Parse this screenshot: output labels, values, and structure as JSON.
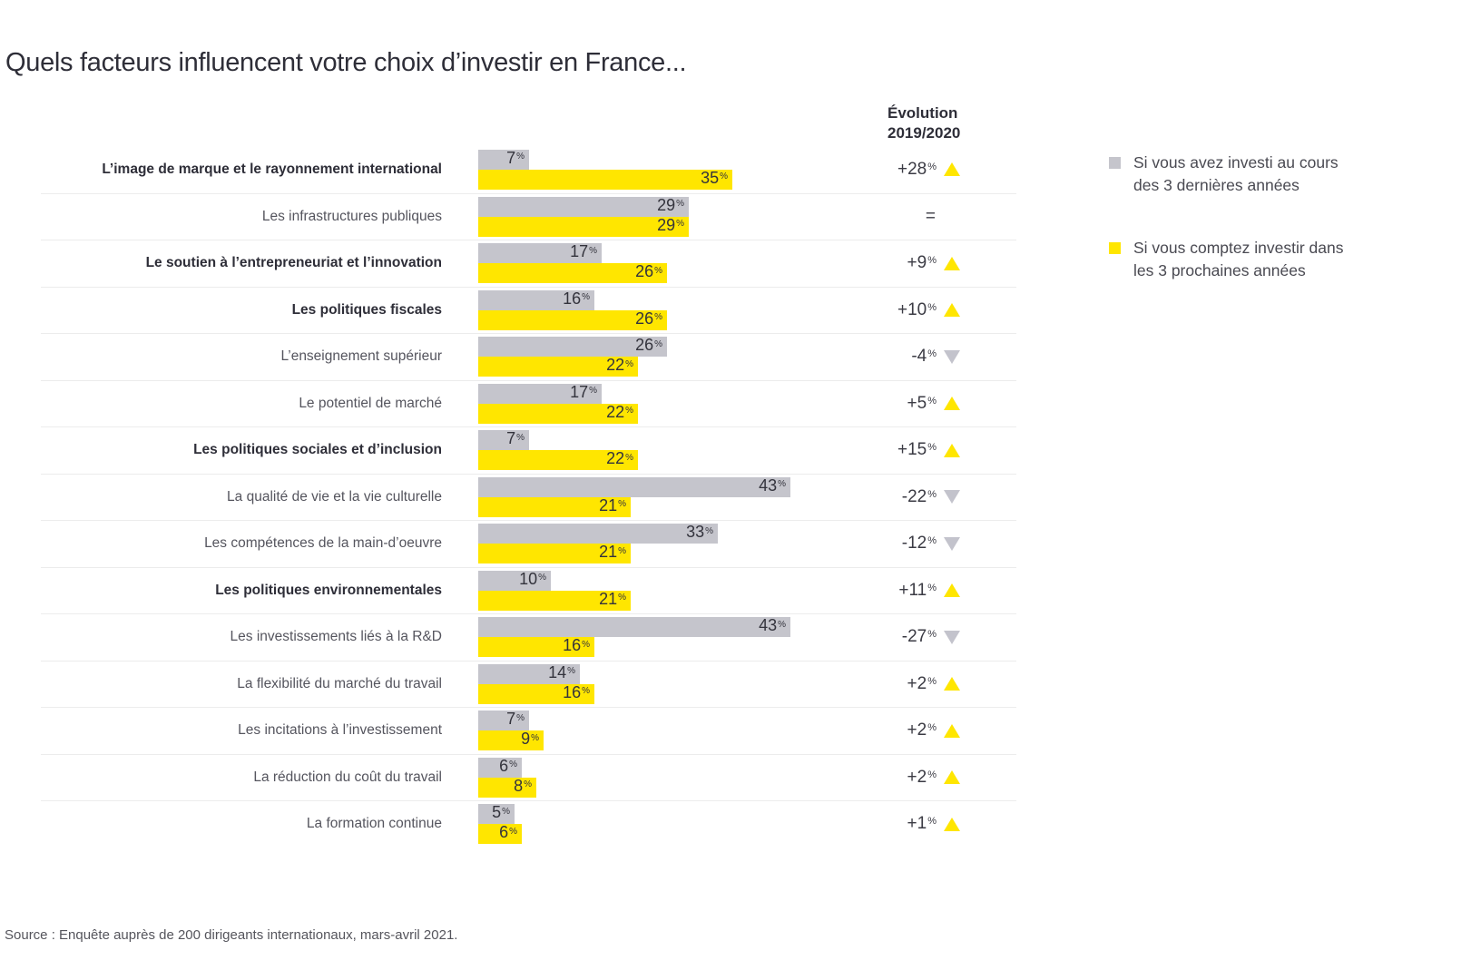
{
  "percent_sign": "%",
  "colors": {
    "bar_gray": "#c5c5cc",
    "bar_yellow": "#ffe600",
    "triangle_up": "#ffe600",
    "triangle_down": "#c3c3cc",
    "text_dark": "#2e2e38"
  },
  "evolution_header": {
    "line1": "Évolution",
    "line2": "2019/2020"
  },
  "legend": {
    "items": [
      {
        "color": "#c5c5cc",
        "line1": "Si vous avez investi au cours",
        "line2": "des 3 dernières années"
      },
      {
        "color": "#ffe600",
        "line1": "Si vous comptez investir dans",
        "line2": "les 3 prochaines années"
      }
    ]
  },
  "chart_data": {
    "type": "bar",
    "orientation": "horizontal",
    "unit": "%",
    "x_max": 50,
    "title": "Quels facteurs influencent votre choix d’investir en France...",
    "source": "Source : Enquête auprès de 200 dirigeants internationaux, mars-avril 2021.",
    "series_names": [
      "Si vous avez investi au cours des 3 dernières années",
      "Si vous comptez investir dans les 3 prochaines années"
    ],
    "evolution_column": "Évolution 2019/2020",
    "rows": [
      {
        "label": "L’image de marque et le rayonnement international",
        "bold": true,
        "invested_past": 7,
        "invest_future": 35,
        "evolution": "+28",
        "direction": "up"
      },
      {
        "label": "Les infrastructures publiques",
        "bold": false,
        "invested_past": 29,
        "invest_future": 29,
        "evolution": "=",
        "direction": "equal"
      },
      {
        "label": "Le soutien à l’entrepreneuriat et l’innovation",
        "bold": true,
        "invested_past": 17,
        "invest_future": 26,
        "evolution": "+9",
        "direction": "up"
      },
      {
        "label": "Les politiques fiscales",
        "bold": true,
        "invested_past": 16,
        "invest_future": 26,
        "evolution": "+10",
        "direction": "up"
      },
      {
        "label": "L’enseignement supérieur",
        "bold": false,
        "invested_past": 26,
        "invest_future": 22,
        "evolution": "-4",
        "direction": "down"
      },
      {
        "label": "Le potentiel de marché",
        "bold": false,
        "invested_past": 17,
        "invest_future": 22,
        "evolution": "+5",
        "direction": "up"
      },
      {
        "label": "Les politiques sociales et d’inclusion",
        "bold": true,
        "invested_past": 7,
        "invest_future": 22,
        "evolution": "+15",
        "direction": "up"
      },
      {
        "label": "La qualité de vie et la vie culturelle",
        "bold": false,
        "invested_past": 43,
        "invest_future": 21,
        "evolution": "-22",
        "direction": "down"
      },
      {
        "label": "Les compétences de la main-d’oeuvre",
        "bold": false,
        "invested_past": 33,
        "invest_future": 21,
        "evolution": "-12",
        "direction": "down"
      },
      {
        "label": "Les politiques environnementales",
        "bold": true,
        "invested_past": 10,
        "invest_future": 21,
        "evolution": "+11",
        "direction": "up"
      },
      {
        "label": "Les investissements liés à la R&D",
        "bold": false,
        "invested_past": 43,
        "invest_future": 16,
        "evolution": "-27",
        "direction": "down"
      },
      {
        "label": "La flexibilité du marché du travail",
        "bold": false,
        "invested_past": 14,
        "invest_future": 16,
        "evolution": "+2",
        "direction": "up"
      },
      {
        "label": "Les incitations à l’investissement",
        "bold": false,
        "invested_past": 7,
        "invest_future": 9,
        "evolution": "+2",
        "direction": "up"
      },
      {
        "label": "La réduction du coût du travail",
        "bold": false,
        "invested_past": 6,
        "invest_future": 8,
        "evolution": "+2",
        "direction": "up"
      },
      {
        "label": "La formation continue",
        "bold": false,
        "invested_past": 5,
        "invest_future": 6,
        "evolution": "+1",
        "direction": "up"
      }
    ]
  }
}
